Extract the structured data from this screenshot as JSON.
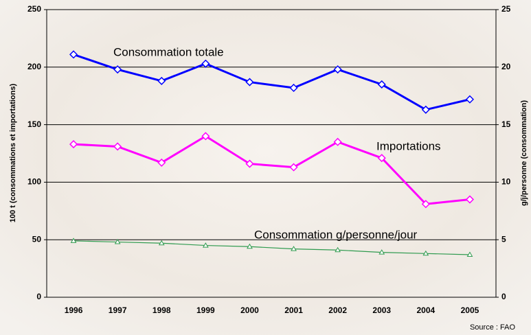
{
  "chart_data": {
    "type": "line",
    "categories": [
      "1996",
      "1997",
      "1998",
      "1999",
      "2000",
      "2001",
      "2002",
      "2003",
      "2004",
      "2005"
    ],
    "series": [
      {
        "name": "Consommation totale",
        "color": "#0000ff",
        "marker": "diamond",
        "values": [
          211,
          198,
          188,
          203,
          187,
          182,
          198,
          185,
          163,
          172
        ]
      },
      {
        "name": "Importations",
        "color": "#ff00ff",
        "marker": "diamond",
        "values": [
          133,
          131,
          117,
          140,
          116,
          113,
          135,
          121,
          81,
          85
        ]
      },
      {
        "name": "Consommation g/personne/jour",
        "color": "#2e9a4e",
        "marker": "triangle",
        "axis": "y2",
        "values": [
          4.9,
          4.8,
          4.7,
          4.5,
          4.4,
          4.2,
          4.1,
          3.9,
          3.8,
          3.7
        ]
      }
    ],
    "ylabel": "100 t (consommations et importations)",
    "y2label": "g/j/personne (consommation)",
    "ylim": [
      0,
      250
    ],
    "yticks": [
      0,
      50,
      100,
      150,
      200,
      250
    ],
    "y2lim": [
      0,
      25
    ],
    "y2ticks": [
      0,
      5,
      10,
      15,
      20,
      25
    ],
    "grid": true,
    "source": "Source : FAO"
  }
}
